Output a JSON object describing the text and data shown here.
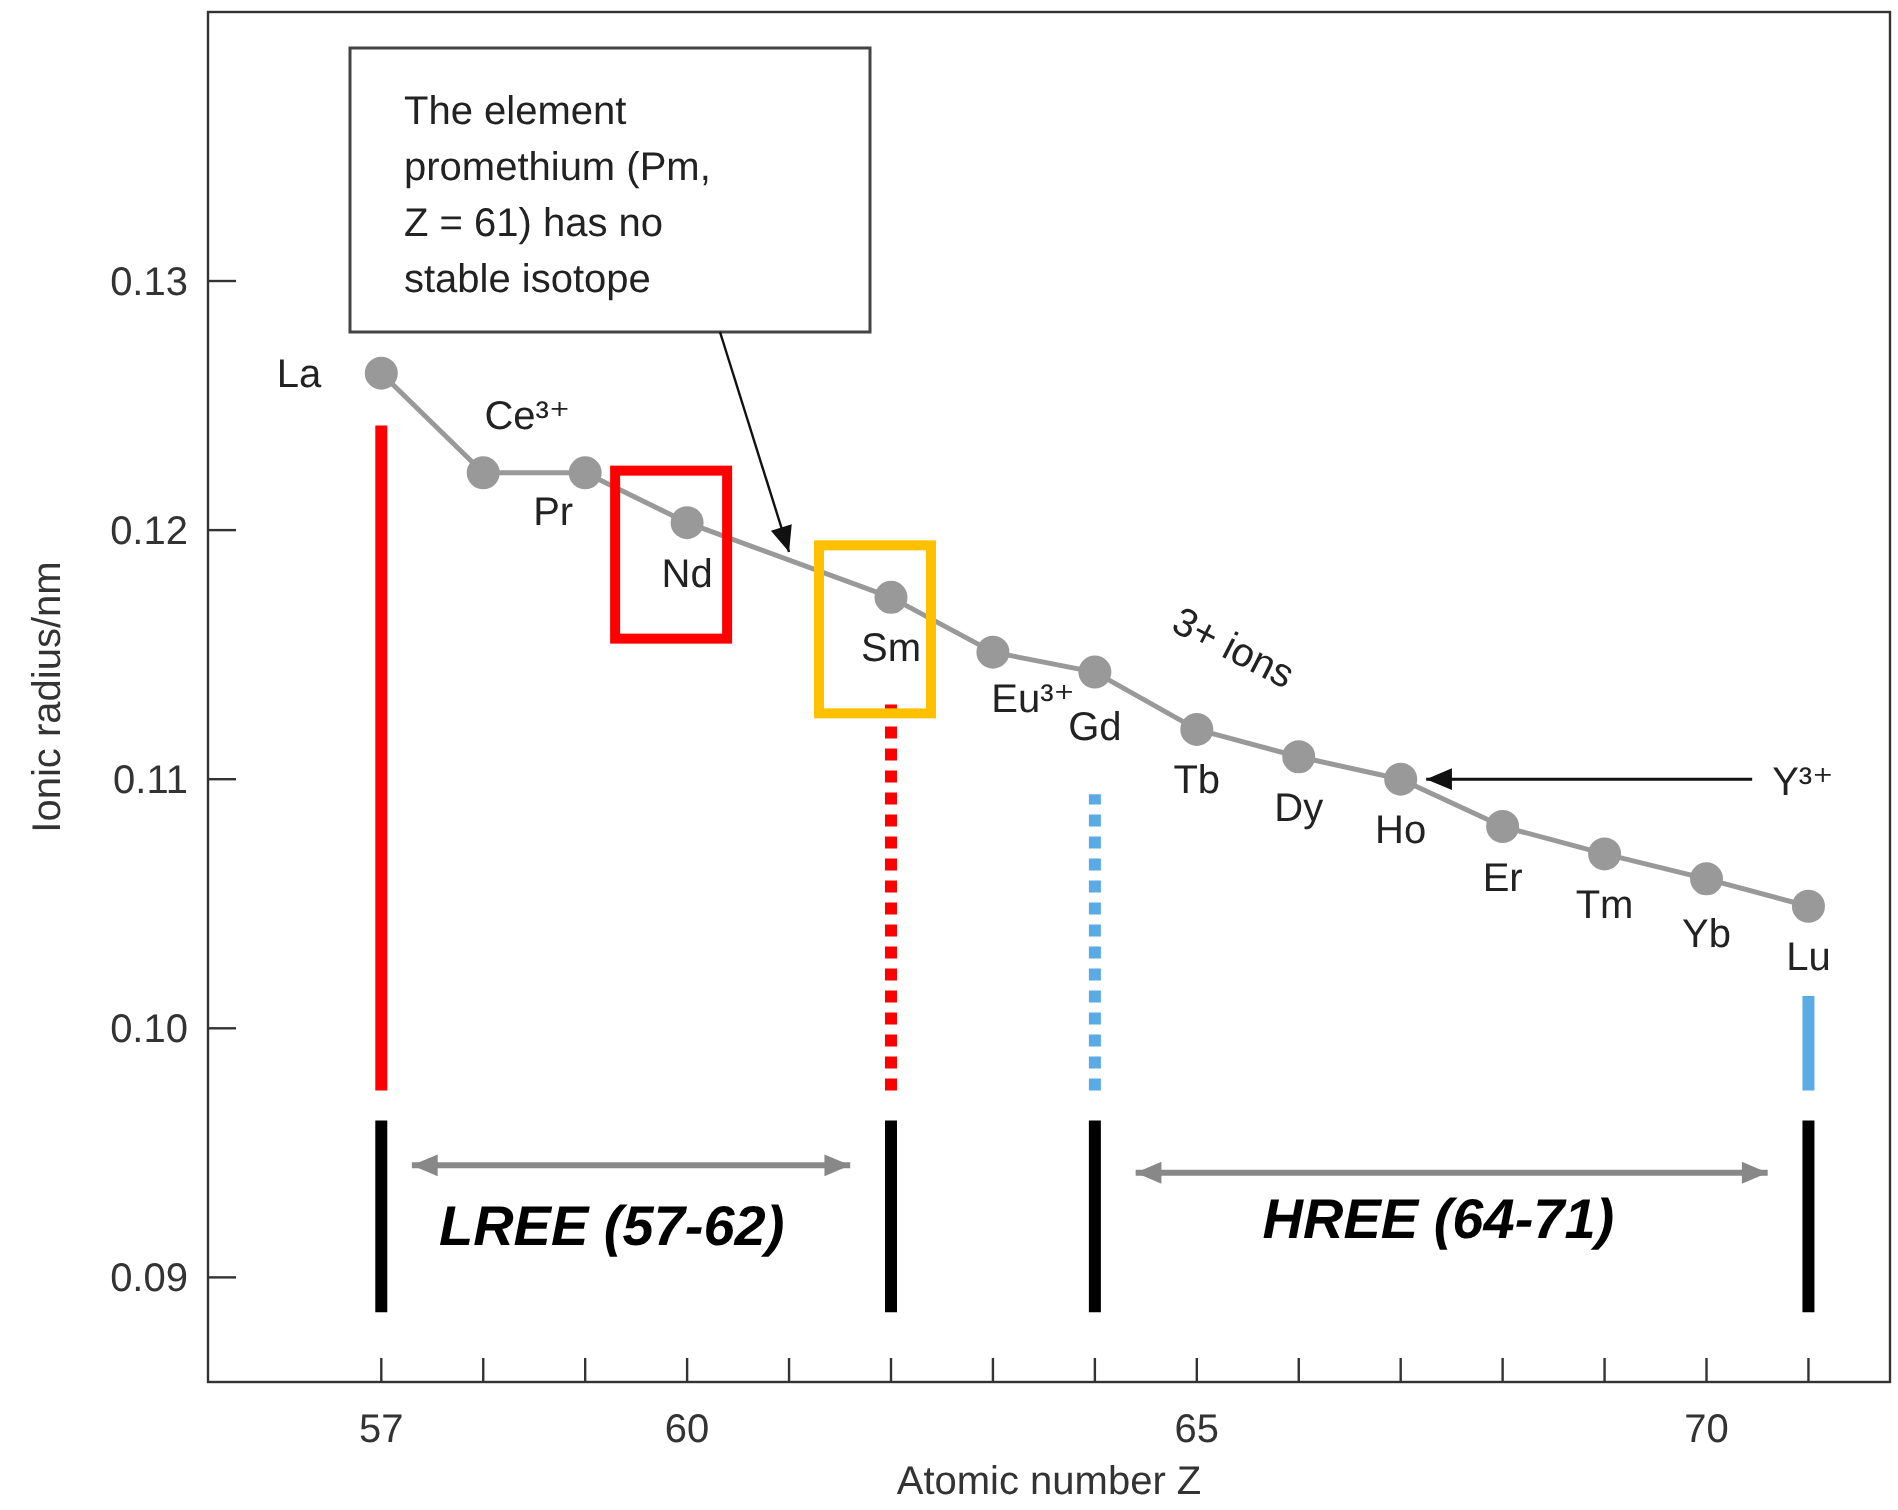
{
  "chart_data": {
    "type": "line",
    "xlabel": "Atomic number Z",
    "ylabel": "Ionic radius/nm",
    "xlim": [
      55.3,
      71.8
    ],
    "ylim": [
      0.0858,
      0.1408
    ],
    "xticks": [
      57,
      {
        "value": 58,
        "label": null
      },
      {
        "value": 59,
        "label": null
      },
      60,
      {
        "value": 61,
        "label": null
      },
      {
        "value": 62,
        "label": null
      },
      {
        "value": 63,
        "label": null
      },
      {
        "value": 64,
        "label": null
      },
      65,
      {
        "value": 66,
        "label": null
      },
      {
        "value": 67,
        "label": null
      },
      {
        "value": 68,
        "label": null
      },
      {
        "value": 69,
        "label": null
      },
      70,
      {
        "value": 71,
        "label": null
      }
    ],
    "yticks": [
      0.09,
      {
        "value": 0.1,
        "label": "0.10"
      },
      0.11,
      0.12,
      0.13
    ],
    "series": [
      {
        "color": "#999999",
        "marker": "circle",
        "line_style": "solid",
        "x": [
          57,
          58,
          59,
          60,
          62,
          63,
          64,
          65,
          66,
          67,
          68,
          69,
          70,
          71
        ],
        "values": [
          0.1263,
          0.1223,
          0.1223,
          0.1203,
          0.1173,
          0.1151,
          0.1143,
          0.112,
          0.1109,
          0.11,
          0.1081,
          0.107,
          0.106,
          0.1049
        ],
        "value_labels": [
          "La",
          "Ce³⁺",
          "Pr",
          "Nd",
          "Sm",
          "Eu³⁺",
          "Gd",
          "Tb",
          "Dy",
          "Ho",
          "Er",
          "Tm",
          "Yb",
          "Lu"
        ]
      },
      {
        "type": "line",
        "color": "#ff0000",
        "marker": "none",
        "line_style": "solid",
        "x": [
          57,
          57
        ],
        "values": [
          0.0975,
          0.1242
        ]
      },
      {
        "type": "line",
        "color": "#ff0000",
        "marker": "none",
        "line_style": "dotted",
        "x": [
          62,
          62
        ],
        "values": [
          0.0975,
          0.1132
        ]
      },
      {
        "type": "line",
        "color": "#5aaae6",
        "marker": "none",
        "line_style": "dotted",
        "x": [
          64,
          64
        ],
        "values": [
          0.0975,
          0.1094
        ]
      },
      {
        "type": "line",
        "color": "#5aaae6",
        "marker": "none",
        "line_style": "solid",
        "x": [
          71,
          71
        ],
        "values": [
          0.0975,
          0.1013
        ]
      },
      {
        "type": "line",
        "color": "#000000",
        "marker": "none",
        "line_style": "solid",
        "x": [
          57,
          57
        ],
        "values": [
          0.0886,
          0.0963
        ]
      },
      {
        "type": "line",
        "color": "#000000",
        "marker": "none",
        "line_style": "solid",
        "x": [
          62,
          62
        ],
        "values": [
          0.0886,
          0.0963
        ]
      },
      {
        "type": "line",
        "color": "#000000",
        "marker": "none",
        "line_style": "solid",
        "x": [
          64,
          64
        ],
        "values": [
          0.0886,
          0.0963
        ]
      },
      {
        "type": "line",
        "color": "#000000",
        "marker": "none",
        "line_style": "solid",
        "x": [
          71,
          71
        ],
        "values": [
          0.0886,
          0.0963
        ]
      }
    ],
    "annotations": [
      {
        "text": "The element promethium (Pm, Z = 61) has no stable isotope",
        "x": 61,
        "y": 0.1188
      },
      "3+ ions",
      {
        "text": "Y³⁺",
        "x": 67.25,
        "y": 0.11
      },
      "LREE (57-62)",
      "HREE (64-71)"
    ]
  }
}
